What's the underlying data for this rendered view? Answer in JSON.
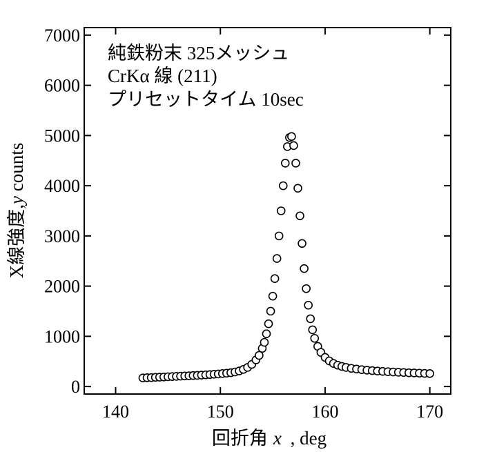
{
  "chart_data": {
    "type": "scatter",
    "title": "",
    "annotations": [
      "純鉄粉末 325メッシュ",
      "CrKα 線 (211)",
      "プリセットタイム 10sec"
    ],
    "xlabel": {
      "main": "回折角",
      "var": "x",
      "unit": " , deg"
    },
    "ylabel": {
      "main": "X線強度,",
      "var": "y",
      "unit": " counts"
    },
    "xlim": [
      137,
      172
    ],
    "ylim": [
      -150,
      7150
    ],
    "xticks": [
      "140",
      "150",
      "160",
      "170"
    ],
    "xtick_values": [
      140,
      150,
      160,
      170
    ],
    "yticks": [
      "0",
      "1000",
      "2000",
      "3000",
      "4000",
      "5000",
      "6000",
      "7000"
    ],
    "ytick_values": [
      0,
      1000,
      2000,
      3000,
      4000,
      5000,
      6000,
      7000
    ],
    "marker": "open-circle",
    "grid": false,
    "series": [
      {
        "points": [
          [
            142.6,
            170
          ],
          [
            143.0,
            175
          ],
          [
            143.4,
            178
          ],
          [
            143.8,
            182
          ],
          [
            144.2,
            186
          ],
          [
            144.6,
            190
          ],
          [
            145.0,
            194
          ],
          [
            145.4,
            198
          ],
          [
            145.8,
            202
          ],
          [
            146.2,
            206
          ],
          [
            146.6,
            210
          ],
          [
            147.0,
            214
          ],
          [
            147.4,
            218
          ],
          [
            147.8,
            222
          ],
          [
            148.2,
            227
          ],
          [
            148.6,
            232
          ],
          [
            149.0,
            238
          ],
          [
            149.4,
            244
          ],
          [
            149.8,
            250
          ],
          [
            150.2,
            258
          ],
          [
            150.6,
            266
          ],
          [
            151.0,
            276
          ],
          [
            151.4,
            290
          ],
          [
            151.8,
            310
          ],
          [
            152.2,
            340
          ],
          [
            152.6,
            380
          ],
          [
            153.0,
            440
          ],
          [
            153.4,
            530
          ],
          [
            153.7,
            620
          ],
          [
            154.0,
            760
          ],
          [
            154.2,
            880
          ],
          [
            154.4,
            1050
          ],
          [
            154.6,
            1250
          ],
          [
            154.8,
            1500
          ],
          [
            155.0,
            1800
          ],
          [
            155.2,
            2150
          ],
          [
            155.4,
            2550
          ],
          [
            155.6,
            3000
          ],
          [
            155.8,
            3500
          ],
          [
            156.0,
            4000
          ],
          [
            156.2,
            4450
          ],
          [
            156.4,
            4780
          ],
          [
            156.6,
            4960
          ],
          [
            156.8,
            4980
          ],
          [
            157.0,
            4800
          ],
          [
            157.2,
            4450
          ],
          [
            157.4,
            3950
          ],
          [
            157.6,
            3400
          ],
          [
            157.8,
            2850
          ],
          [
            158.0,
            2350
          ],
          [
            158.2,
            1950
          ],
          [
            158.4,
            1620
          ],
          [
            158.6,
            1350
          ],
          [
            158.8,
            1130
          ],
          [
            159.0,
            960
          ],
          [
            159.3,
            800
          ],
          [
            159.6,
            680
          ],
          [
            160.0,
            580
          ],
          [
            160.4,
            510
          ],
          [
            160.8,
            460
          ],
          [
            161.2,
            425
          ],
          [
            161.6,
            400
          ],
          [
            162.0,
            380
          ],
          [
            162.5,
            362
          ],
          [
            163.0,
            348
          ],
          [
            163.5,
            336
          ],
          [
            164.0,
            325
          ],
          [
            164.5,
            316
          ],
          [
            165.0,
            308
          ],
          [
            165.5,
            301
          ],
          [
            166.0,
            295
          ],
          [
            166.5,
            289
          ],
          [
            167.0,
            284
          ],
          [
            167.5,
            279
          ],
          [
            168.0,
            274
          ],
          [
            168.5,
            270
          ],
          [
            169.0,
            266
          ],
          [
            169.5,
            262
          ],
          [
            170.0,
            258
          ]
        ]
      }
    ]
  }
}
